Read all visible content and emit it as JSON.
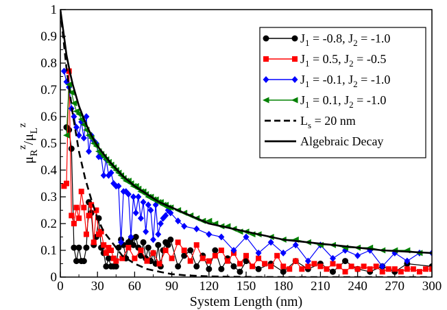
{
  "chart_data": {
    "type": "line",
    "xlabel": "System Length (nm)",
    "ylabel": {
      "base": "μ",
      "sub1": "R",
      "sup1": "z",
      "slash": "/",
      "base2": "μ",
      "sub2": "L",
      "sup2": "z"
    },
    "xlim": [
      0,
      300
    ],
    "ylim": [
      0,
      1
    ],
    "x_ticks": [
      "0",
      "30",
      "60",
      "90",
      "120",
      "150",
      "180",
      "210",
      "240",
      "270",
      "300"
    ],
    "y_ticks": [
      "0",
      "0.1",
      "0.2",
      "0.3",
      "0.4",
      "0.5",
      "0.6",
      "0.7",
      "0.8",
      "0.9",
      "1"
    ],
    "grid": false,
    "legend_position": "top-right",
    "series": [
      {
        "name": {
          "pre": "J",
          "s1": "1",
          "mid": " = -0.8, J",
          "s2": "2",
          "post": " = -1.0"
        },
        "color": "#000000",
        "marker": "circle",
        "line": "solid",
        "x": [
          5,
          7,
          9,
          11,
          13,
          15,
          17,
          19,
          21,
          23,
          25,
          27,
          29,
          31,
          33,
          35,
          37,
          39,
          41,
          43,
          45,
          47,
          49,
          51,
          53,
          55,
          57,
          59,
          61,
          63,
          65,
          67,
          69,
          71,
          73,
          75,
          77,
          79,
          81,
          83,
          85,
          87,
          89,
          95,
          100,
          105,
          110,
          115,
          120,
          125,
          130,
          135,
          140,
          145,
          150,
          160,
          170,
          180,
          190,
          200,
          210,
          220,
          230,
          240,
          250,
          260,
          270,
          280,
          300
        ],
        "y": [
          0.56,
          0.55,
          0.48,
          0.11,
          0.06,
          0.11,
          0.06,
          0.06,
          0.11,
          0.28,
          0.24,
          0.12,
          0.15,
          0.22,
          0.11,
          0.09,
          0.04,
          0.07,
          0.04,
          0.04,
          0.04,
          0.11,
          0.14,
          0.12,
          0.07,
          0.13,
          0.14,
          0.12,
          0.15,
          0.11,
          0.08,
          0.13,
          0.07,
          0.11,
          0.06,
          0.09,
          0.05,
          0.12,
          0.04,
          0.1,
          0.13,
          0.12,
          0.14,
          0.04,
          0.08,
          0.1,
          0.04,
          0.08,
          0.03,
          0.1,
          0.03,
          0.07,
          0.04,
          0.02,
          0.06,
          0.03,
          0.05,
          0.02,
          0.06,
          0.03,
          0.05,
          0.02,
          0.06,
          0.03,
          0.02,
          0.04,
          0.02,
          0.05,
          0.04
        ]
      },
      {
        "name": {
          "pre": "J",
          "s1": "1",
          "mid": " = 0.5, J",
          "s2": "2",
          "post": " = -0.5"
        },
        "color": "#ff0000",
        "marker": "square",
        "line": "solid",
        "x": [
          3,
          5,
          7,
          9,
          11,
          13,
          15,
          17,
          19,
          21,
          23,
          25,
          27,
          29,
          31,
          33,
          35,
          37,
          39,
          41,
          43,
          45,
          50,
          55,
          60,
          65,
          70,
          75,
          80,
          85,
          90,
          95,
          100,
          105,
          110,
          115,
          120,
          125,
          130,
          135,
          140,
          145,
          150,
          155,
          160,
          165,
          170,
          175,
          180,
          185,
          190,
          195,
          200,
          205,
          210,
          215,
          220,
          225,
          230,
          235,
          240,
          245,
          250,
          255,
          260,
          265,
          270,
          275,
          280,
          285,
          290,
          295,
          300
        ],
        "y": [
          0.34,
          0.35,
          0.77,
          0.23,
          0.2,
          0.26,
          0.22,
          0.32,
          0.26,
          0.16,
          0.23,
          0.27,
          0.13,
          0.25,
          0.16,
          0.17,
          0.12,
          0.09,
          0.11,
          0.1,
          0.07,
          0.06,
          0.07,
          0.11,
          0.07,
          0.1,
          0.06,
          0.09,
          0.05,
          0.1,
          0.07,
          0.13,
          0.1,
          0.06,
          0.12,
          0.07,
          0.06,
          0.08,
          0.1,
          0.06,
          0.09,
          0.05,
          0.08,
          0.04,
          0.07,
          0.05,
          0.04,
          0.08,
          0.04,
          0.03,
          0.06,
          0.03,
          0.04,
          0.05,
          0.04,
          0.03,
          0.05,
          0.04,
          0.02,
          0.04,
          0.03,
          0.04,
          0.03,
          0.04,
          0.02,
          0.03,
          0.03,
          0.02,
          0.03,
          0.03,
          0.02,
          0.03,
          0.03
        ]
      },
      {
        "name": {
          "pre": "J",
          "s1": "1",
          "mid": " = -0.1, J",
          "s2": "2",
          "post": " = -1.0"
        },
        "color": "#0000ff",
        "marker": "diamond",
        "line": "solid",
        "x": [
          3,
          5,
          7,
          9,
          11,
          13,
          15,
          17,
          19,
          21,
          23,
          25,
          27,
          29,
          31,
          33,
          35,
          37,
          39,
          41,
          43,
          45,
          47,
          49,
          51,
          53,
          55,
          57,
          59,
          61,
          63,
          65,
          67,
          69,
          71,
          73,
          75,
          77,
          79,
          81,
          83,
          85,
          87,
          89,
          95,
          100,
          110,
          120,
          130,
          140,
          150,
          160,
          170,
          180,
          190,
          200,
          210,
          220,
          230,
          240,
          250,
          260,
          270,
          280,
          290,
          300
        ],
        "y": [
          0.77,
          0.73,
          0.71,
          0.63,
          0.6,
          0.56,
          0.53,
          0.58,
          0.52,
          0.6,
          0.47,
          0.53,
          0.51,
          0.5,
          0.45,
          0.45,
          0.38,
          0.44,
          0.38,
          0.39,
          0.35,
          0.34,
          0.34,
          0.13,
          0.32,
          0.32,
          0.31,
          0.15,
          0.3,
          0.24,
          0.3,
          0.22,
          0.28,
          0.17,
          0.27,
          0.25,
          0.14,
          0.27,
          0.16,
          0.2,
          0.22,
          0.23,
          0.25,
          0.24,
          0.21,
          0.19,
          0.18,
          0.16,
          0.15,
          0.1,
          0.15,
          0.09,
          0.13,
          0.09,
          0.12,
          0.06,
          0.12,
          0.07,
          0.1,
          0.08,
          0.1,
          0.04,
          0.09,
          0.06,
          0.09,
          0.09
        ]
      },
      {
        "name": {
          "pre": "J",
          "s1": "1",
          "mid": " = 0.1, J",
          "s2": "2",
          "post": " = -1.0"
        },
        "color": "#008000",
        "marker": "triangle-left",
        "line": "solid",
        "x": [
          5,
          7,
          9,
          11,
          13,
          15,
          17,
          19,
          21,
          23,
          25,
          27,
          29,
          31,
          33,
          35,
          37,
          39,
          41,
          43,
          45,
          47,
          49,
          51,
          53,
          55,
          57,
          59,
          61,
          63,
          65,
          67,
          69,
          71,
          73,
          75,
          77,
          79,
          81,
          83,
          85,
          87,
          89,
          95,
          100,
          105,
          110,
          115,
          120,
          125,
          130,
          135,
          140,
          145,
          150,
          155,
          160,
          170,
          180,
          190,
          200,
          210,
          220,
          230,
          240,
          250,
          260,
          270,
          280,
          290,
          300
        ],
        "y": [
          0.53,
          0.72,
          0.69,
          0.65,
          0.62,
          0.61,
          0.59,
          0.57,
          0.55,
          0.53,
          0.52,
          0.5,
          0.49,
          0.47,
          0.46,
          0.45,
          0.44,
          0.43,
          0.42,
          0.41,
          0.4,
          0.39,
          0.38,
          0.37,
          0.36,
          0.36,
          0.35,
          0.34,
          0.34,
          0.33,
          0.32,
          0.32,
          0.31,
          0.3,
          0.3,
          0.29,
          0.29,
          0.28,
          0.28,
          0.27,
          0.27,
          0.26,
          0.26,
          0.25,
          0.24,
          0.23,
          0.22,
          0.21,
          0.21,
          0.2,
          0.19,
          0.19,
          0.18,
          0.17,
          0.17,
          0.16,
          0.16,
          0.15,
          0.14,
          0.14,
          0.13,
          0.12,
          0.12,
          0.11,
          0.11,
          0.11,
          0.1,
          0.1,
          0.1,
          0.09,
          0.09
        ]
      },
      {
        "name": {
          "pre": "L",
          "s1": "s",
          "mid": " = 20 nm",
          "s2": "",
          "post": ""
        },
        "color": "#000000",
        "marker": "none",
        "line": "dashed",
        "x": [
          0,
          5,
          10,
          15,
          20,
          25,
          30,
          35,
          40,
          45,
          50,
          60,
          70,
          80,
          90,
          100,
          120,
          140,
          160,
          180,
          200,
          250,
          300
        ],
        "y": [
          1.0,
          0.78,
          0.61,
          0.47,
          0.37,
          0.29,
          0.22,
          0.17,
          0.14,
          0.11,
          0.08,
          0.05,
          0.03,
          0.02,
          0.011,
          0.007,
          0.0025,
          0.0009,
          0.0003,
          0.0001,
          0.0,
          0.0,
          0.0
        ]
      },
      {
        "name": {
          "pre": "Algebraic Decay",
          "s1": "",
          "mid": "",
          "s2": "",
          "post": ""
        },
        "color": "#000000",
        "marker": "none",
        "line": "solid",
        "x": [
          0,
          3,
          5,
          8,
          10,
          15,
          20,
          25,
          30,
          40,
          50,
          60,
          70,
          80,
          90,
          100,
          120,
          140,
          160,
          180,
          200,
          220,
          240,
          260,
          280,
          300
        ],
        "y": [
          1.0,
          0.9,
          0.83,
          0.76,
          0.72,
          0.64,
          0.58,
          0.53,
          0.49,
          0.43,
          0.38,
          0.34,
          0.31,
          0.28,
          0.26,
          0.24,
          0.2,
          0.18,
          0.16,
          0.14,
          0.13,
          0.12,
          0.11,
          0.1,
          0.095,
          0.09
        ]
      }
    ]
  }
}
